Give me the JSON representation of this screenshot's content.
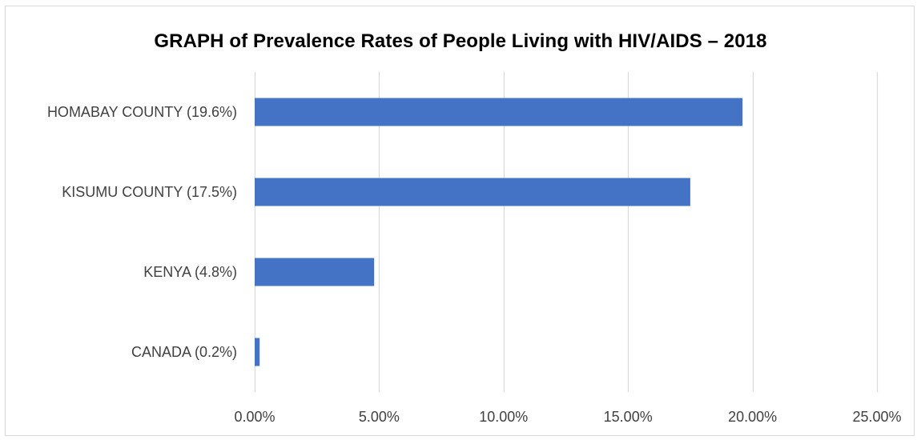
{
  "chart_data": {
    "type": "bar",
    "orientation": "horizontal",
    "title": "GRAPH of Prevalence Rates of People Living with HIV/AIDS – 2018",
    "categories": [
      "HOMABAY COUNTY (19.6%)",
      "KISUMU COUNTY (17.5%)",
      "KENYA (4.8%)",
      "CANADA (0.2%)"
    ],
    "values": [
      0.196,
      0.175,
      0.048,
      0.002
    ],
    "xlim": [
      0,
      0.25
    ],
    "xticks": [
      0,
      0.05,
      0.1,
      0.15,
      0.2,
      0.25
    ],
    "xtick_labels": [
      "0.00%",
      "5.00%",
      "10.00%",
      "15.00%",
      "20.00%",
      "25.00%"
    ],
    "xlabel": "",
    "ylabel": "",
    "grid": "vertical",
    "legend": "none",
    "bar_color": "#4472c4",
    "grid_color": "#d9d9d9"
  }
}
